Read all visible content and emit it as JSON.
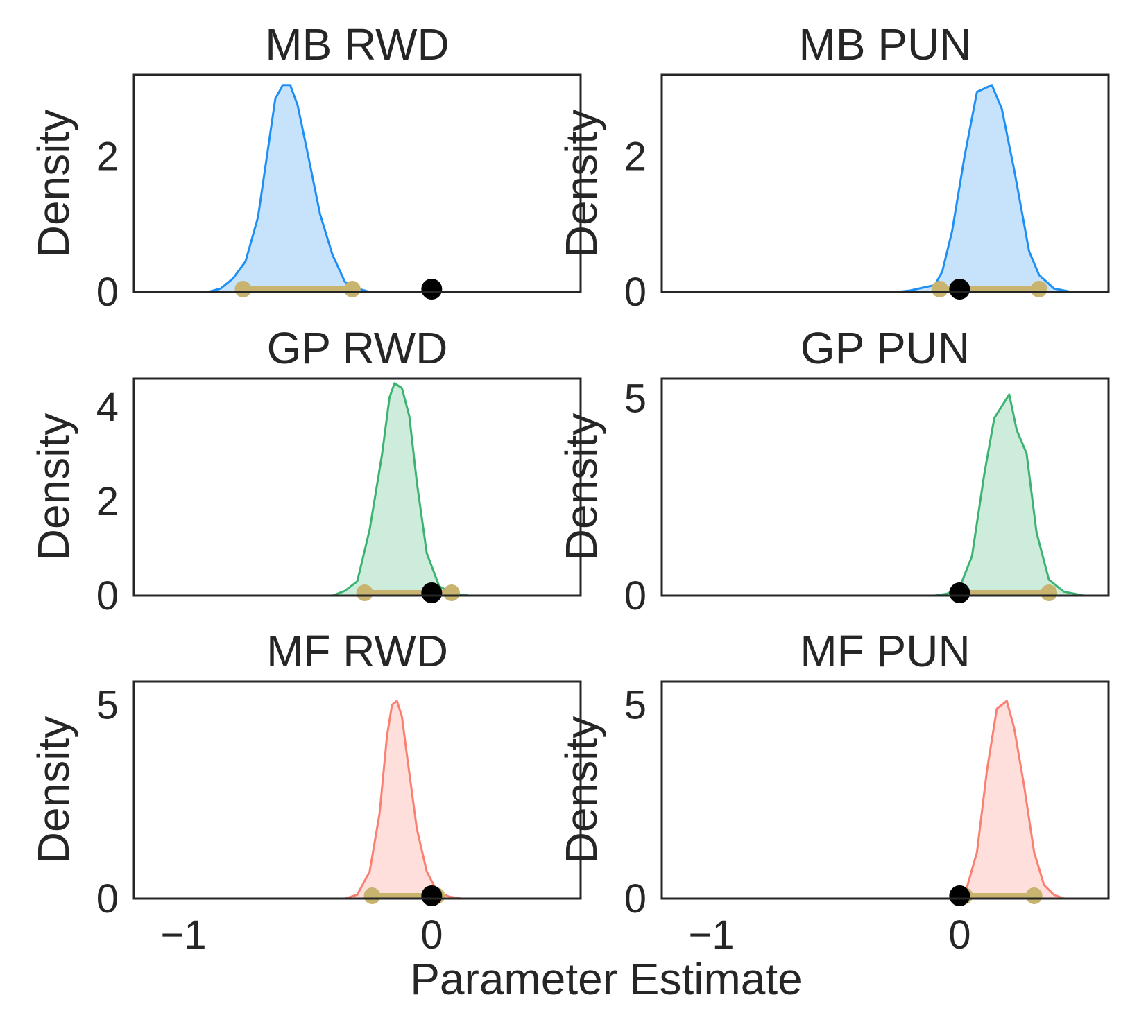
{
  "figure": {
    "xlabel": "Parameter Estimate",
    "colors": {
      "MB": "#1e8ff5",
      "GP": "#3cb371",
      "MF": "#fa8072",
      "interval": "#c8b46e",
      "point": "#000000",
      "frame": "#262626"
    }
  },
  "chart_data": [
    {
      "type": "area",
      "title": "MB RWD",
      "ylabel": "Density",
      "xlim": [
        -1.2,
        0.6
      ],
      "ylim": [
        0,
        3.2
      ],
      "yticks": [
        0,
        2
      ],
      "xticks": [],
      "color_key": "MB",
      "density": [
        [
          -0.9,
          0
        ],
        [
          -0.85,
          0.05
        ],
        [
          -0.8,
          0.2
        ],
        [
          -0.75,
          0.45
        ],
        [
          -0.7,
          1.1
        ],
        [
          -0.66,
          2.1
        ],
        [
          -0.63,
          2.85
        ],
        [
          -0.6,
          3.05
        ],
        [
          -0.57,
          3.05
        ],
        [
          -0.54,
          2.75
        ],
        [
          -0.5,
          2.05
        ],
        [
          -0.45,
          1.15
        ],
        [
          -0.4,
          0.55
        ],
        [
          -0.35,
          0.15
        ],
        [
          -0.3,
          0.05
        ],
        [
          -0.25,
          0
        ]
      ],
      "interval": [
        -0.76,
        -0.32
      ],
      "point": 0.0
    },
    {
      "type": "area",
      "title": "MB PUN",
      "ylabel": "Density",
      "xlim": [
        -1.2,
        0.6
      ],
      "ylim": [
        0,
        3.2
      ],
      "yticks": [
        0,
        2
      ],
      "xticks": [],
      "color_key": "MB",
      "density": [
        [
          -0.25,
          0
        ],
        [
          -0.2,
          0.02
        ],
        [
          -0.1,
          0.1
        ],
        [
          -0.07,
          0.3
        ],
        [
          -0.03,
          0.9
        ],
        [
          0.02,
          2.0
        ],
        [
          0.07,
          2.95
        ],
        [
          0.1,
          3.0
        ],
        [
          0.13,
          3.05
        ],
        [
          0.17,
          2.7
        ],
        [
          0.22,
          1.8
        ],
        [
          0.28,
          0.6
        ],
        [
          0.32,
          0.25
        ],
        [
          0.38,
          0.05
        ],
        [
          0.45,
          0
        ]
      ],
      "interval": [
        -0.08,
        0.32
      ],
      "point": 0.0
    },
    {
      "type": "area",
      "title": "GP RWD",
      "ylabel": "Density",
      "xlim": [
        -1.2,
        0.6
      ],
      "ylim": [
        0,
        4.6
      ],
      "yticks": [
        0,
        2,
        4
      ],
      "xticks": [],
      "color_key": "GP",
      "density": [
        [
          -0.4,
          0
        ],
        [
          -0.35,
          0.1
        ],
        [
          -0.3,
          0.3
        ],
        [
          -0.25,
          1.4
        ],
        [
          -0.2,
          3.0
        ],
        [
          -0.17,
          4.2
        ],
        [
          -0.15,
          4.5
        ],
        [
          -0.12,
          4.4
        ],
        [
          -0.09,
          3.8
        ],
        [
          -0.06,
          2.4
        ],
        [
          -0.02,
          0.9
        ],
        [
          0.03,
          0.2
        ],
        [
          0.08,
          0.05
        ],
        [
          0.15,
          0
        ]
      ],
      "interval": [
        -0.27,
        0.08
      ],
      "point": 0.0
    },
    {
      "type": "area",
      "title": "GP PUN",
      "ylabel": "Density",
      "xlim": [
        -1.2,
        0.6
      ],
      "ylim": [
        0,
        5.5
      ],
      "yticks": [
        0,
        5
      ],
      "xticks": [],
      "color_key": "GP",
      "density": [
        [
          -0.1,
          0
        ],
        [
          -0.05,
          0.05
        ],
        [
          0.0,
          0.2
        ],
        [
          0.05,
          1.0
        ],
        [
          0.1,
          3.1
        ],
        [
          0.14,
          4.5
        ],
        [
          0.17,
          4.8
        ],
        [
          0.2,
          5.1
        ],
        [
          0.23,
          4.2
        ],
        [
          0.27,
          3.6
        ],
        [
          0.31,
          1.6
        ],
        [
          0.36,
          0.4
        ],
        [
          0.42,
          0.1
        ],
        [
          0.5,
          0
        ]
      ],
      "interval": [
        0.0,
        0.36
      ],
      "point": 0.0
    },
    {
      "type": "area",
      "title": "MF RWD",
      "ylabel": "Density",
      "xlim": [
        -1.2,
        0.6
      ],
      "ylim": [
        0,
        5.6
      ],
      "yticks": [
        0,
        5
      ],
      "xticks": [
        -1,
        0
      ],
      "color_key": "MF",
      "density": [
        [
          -0.35,
          0
        ],
        [
          -0.3,
          0.1
        ],
        [
          -0.25,
          0.7
        ],
        [
          -0.21,
          2.2
        ],
        [
          -0.18,
          4.2
        ],
        [
          -0.16,
          5.0
        ],
        [
          -0.14,
          5.1
        ],
        [
          -0.12,
          4.7
        ],
        [
          -0.1,
          3.7
        ],
        [
          -0.06,
          1.8
        ],
        [
          -0.02,
          0.7
        ],
        [
          0.02,
          0.2
        ],
        [
          0.07,
          0.05
        ],
        [
          0.12,
          0
        ]
      ],
      "interval": [
        -0.24,
        0.02
      ],
      "point": 0.0
    },
    {
      "type": "area",
      "title": "MF PUN",
      "ylabel": "Density",
      "xlim": [
        -1.2,
        0.6
      ],
      "ylim": [
        0,
        5.6
      ],
      "yticks": [
        0,
        5
      ],
      "xticks": [
        -1,
        0
      ],
      "color_key": "MF",
      "density": [
        [
          0.0,
          0
        ],
        [
          0.03,
          0.3
        ],
        [
          0.07,
          1.2
        ],
        [
          0.11,
          3.3
        ],
        [
          0.15,
          4.9
        ],
        [
          0.19,
          5.1
        ],
        [
          0.22,
          4.4
        ],
        [
          0.26,
          2.9
        ],
        [
          0.3,
          1.2
        ],
        [
          0.34,
          0.35
        ],
        [
          0.38,
          0.1
        ],
        [
          0.42,
          0
        ]
      ],
      "interval": [
        0.02,
        0.3
      ],
      "point": 0.0
    }
  ]
}
